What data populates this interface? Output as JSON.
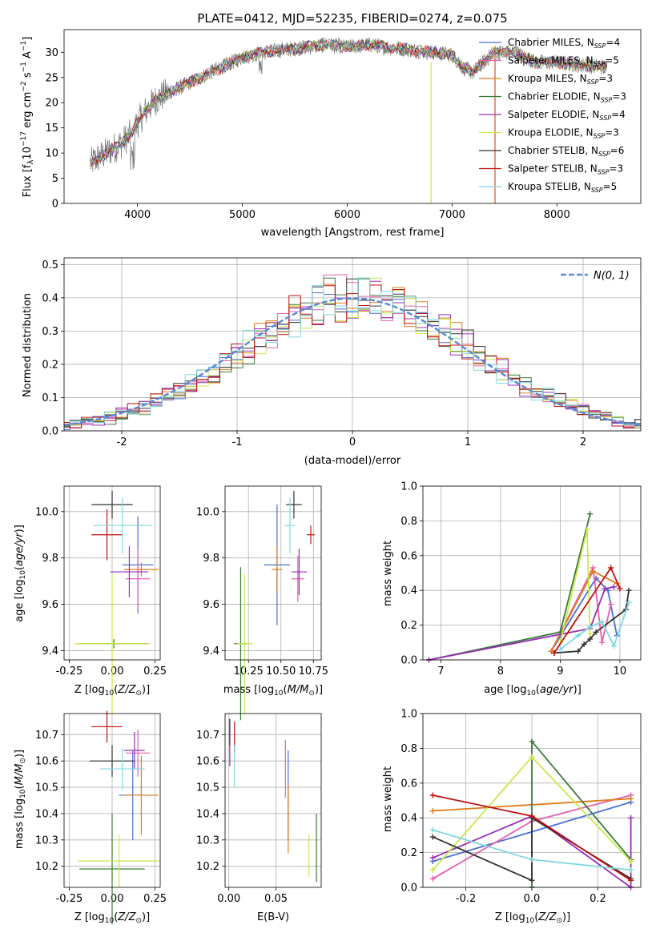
{
  "chart_data": [
    {
      "id": "spectrum",
      "type": "line",
      "title": "PLATE=0412, MJD=52235, FIBERID=0274, z=0.075",
      "xlabel": "wavelength [Angstrom, rest frame]",
      "ylabel": "Flux [f_λ10^-17 erg cm^-2 s^-1 A^-1]",
      "xlim": [
        3300,
        8800
      ],
      "ylim": [
        0,
        34.5
      ],
      "xticks": [
        4000,
        5000,
        6000,
        7000,
        8000
      ],
      "yticks": [
        0,
        5,
        10,
        15,
        20,
        25,
        30
      ],
      "series": [
        {
          "name": "Chabrier MILES, N_SSP=4",
          "color": "#4a6fd6"
        },
        {
          "name": "Salpeter MILES, N_SSP=5",
          "color": "#e45fb0"
        },
        {
          "name": "Kroupa MILES, N_SSP=3",
          "color": "#e07b1a"
        },
        {
          "name": "Chabrier ELODIE, N_SSP=3",
          "color": "#3a7a3a"
        },
        {
          "name": "Salpeter ELODIE, N_SSP=4",
          "color": "#9a2db8"
        },
        {
          "name": "Kroupa ELODIE, N_SSP=3",
          "color": "#c8e84a"
        },
        {
          "name": "Chabrier STELIB, N_SSP=6",
          "color": "#333333"
        },
        {
          "name": "Salpeter STELIB, N_SSP=3",
          "color": "#c01010"
        },
        {
          "name": "Kroupa STELIB, N_SSP=5",
          "color": "#7fd8de"
        }
      ],
      "continuum": {
        "x": [
          3550,
          3700,
          3850,
          3950,
          4000,
          4100,
          4200,
          4300,
          4500,
          4700,
          4900,
          5000,
          5200,
          5400,
          5600,
          5800,
          6000,
          6200,
          6400,
          6600,
          6800,
          7000,
          7100,
          7200,
          7400,
          7600,
          7800,
          8000,
          8200,
          8500
        ],
        "y": [
          8,
          10,
          12,
          14,
          16,
          19,
          21,
          22,
          24,
          26,
          28,
          29,
          30,
          30.5,
          31,
          31.5,
          31,
          31.5,
          31,
          30.5,
          30,
          29.5,
          27,
          26,
          30,
          30,
          28,
          28,
          27.5,
          27
        ]
      }
    },
    {
      "id": "residuals",
      "type": "area",
      "xlabel": "(data-model)/error",
      "ylabel": "Normed distribution",
      "xlim": [
        -2.5,
        2.5
      ],
      "ylim": [
        0,
        0.52
      ],
      "xticks": [
        -2,
        -1,
        0,
        1,
        2
      ],
      "yticks": [
        0.0,
        0.1,
        0.2,
        0.3,
        0.4,
        0.5
      ],
      "legend": "N(0, 1)",
      "gaussian_color": "#5b8bd6"
    },
    {
      "id": "age_vs_Z",
      "type": "scatter",
      "xlabel": "Z [log10(Z/Z⊙)]",
      "ylabel": "age  [log10(age/yr)]",
      "xlim": [
        -0.28,
        0.28
      ],
      "ylim": [
        9.36,
        10.11
      ],
      "xticks": [
        -0.25,
        0.0,
        0.25
      ],
      "yticks": [
        9.4,
        9.6,
        9.8,
        10.0
      ],
      "points": [
        {
          "color": "#4a6fd6",
          "x": 0.15,
          "y": 9.77,
          "ex": 0.09,
          "ey": 0.21
        },
        {
          "color": "#e45fb0",
          "x": 0.15,
          "y": 9.71,
          "ex": 0.07,
          "ey": 0.13
        },
        {
          "color": "#e07b1a",
          "x": 0.17,
          "y": 9.75,
          "ex": 0.1,
          "ey": 0.03
        },
        {
          "color": "#3a7a3a",
          "x": 0.01,
          "y": 9.43,
          "ex": 0.2,
          "ey": 0.02
        },
        {
          "color": "#9a2db8",
          "x": 0.1,
          "y": 9.74,
          "ex": 0.11,
          "ey": 0.11
        },
        {
          "color": "#c8e84a",
          "x": 0.0,
          "y": 9.43,
          "ex": 0.22,
          "ey": 0.3
        },
        {
          "color": "#333333",
          "x": 0.0,
          "y": 10.03,
          "ex": 0.12,
          "ey": 0.06
        },
        {
          "color": "#c01010",
          "x": -0.03,
          "y": 9.9,
          "ex": 0.09,
          "ey": 0.11
        },
        {
          "color": "#7fd8de",
          "x": 0.06,
          "y": 9.94,
          "ex": 0.17,
          "ey": 0.12
        }
      ]
    },
    {
      "id": "age_vs_mass",
      "type": "scatter",
      "xlabel": "mass [log10(M/M⊙)]",
      "ylabel": "",
      "xlim": [
        10.07,
        10.81
      ],
      "ylim": [
        9.36,
        10.11
      ],
      "xticks": [
        10.25,
        10.5,
        10.75
      ],
      "yticks": [
        9.4,
        9.6,
        9.8,
        10.0
      ],
      "points": [
        {
          "color": "#4a6fd6",
          "x": 10.47,
          "y": 9.77,
          "ex": 0.1,
          "ey": 0.26
        },
        {
          "color": "#e45fb0",
          "x": 10.63,
          "y": 9.71,
          "ex": 0.05,
          "ey": 0.1
        },
        {
          "color": "#e07b1a",
          "x": 10.47,
          "y": 9.75,
          "ex": 0.04,
          "ey": 0.1
        },
        {
          "color": "#3a7a3a",
          "x": 10.19,
          "y": 9.43,
          "ex": 0.05,
          "ey": 0.33
        },
        {
          "color": "#9a2db8",
          "x": 10.64,
          "y": 9.74,
          "ex": 0.06,
          "ey": 0.1
        },
        {
          "color": "#c8e84a",
          "x": 10.22,
          "y": 9.43,
          "ex": 0.06,
          "ey": 0.3
        },
        {
          "color": "#333333",
          "x": 10.6,
          "y": 10.03,
          "ex": 0.06,
          "ey": 0.06
        },
        {
          "color": "#c01010",
          "x": 10.73,
          "y": 9.9,
          "ex": 0.03,
          "ey": 0.04
        },
        {
          "color": "#7fd8de",
          "x": 10.57,
          "y": 9.94,
          "ex": 0.04,
          "ey": 0.12
        }
      ]
    },
    {
      "id": "weight_vs_age",
      "type": "line",
      "xlabel": "age  [log10(age/yr)]",
      "ylabel": "mass weight",
      "xlim": [
        6.7,
        10.35
      ],
      "ylim": [
        0.0,
        1.0
      ],
      "xticks": [
        7,
        8,
        9,
        10
      ],
      "yticks": [
        0.0,
        0.2,
        0.4,
        0.6,
        0.8,
        1.0
      ],
      "series": [
        {
          "color": "#4a6fd6",
          "x": [
            8.85,
            9.6,
            9.8,
            9.95
          ],
          "y": [
            0.05,
            0.47,
            0.4,
            0.14
          ]
        },
        {
          "color": "#e45fb0",
          "x": [
            8.85,
            9.55,
            9.7,
            9.85
          ],
          "y": [
            0.05,
            0.53,
            0.1,
            0.32
          ]
        },
        {
          "color": "#e07b1a",
          "x": [
            8.85,
            9.55,
            9.95
          ],
          "y": [
            0.05,
            0.51,
            0.44
          ]
        },
        {
          "color": "#3a7a3a",
          "x": [
            6.8,
            9.0,
            9.5
          ],
          "y": [
            0.0,
            0.16,
            0.84
          ]
        },
        {
          "color": "#9a2db8",
          "x": [
            6.8,
            9.5,
            9.75,
            9.9
          ],
          "y": [
            0.0,
            0.18,
            0.41,
            0.42
          ]
        },
        {
          "color": "#c8e84a",
          "x": [
            9.0,
            9.45,
            9.5
          ],
          "y": [
            0.1,
            0.75,
            0.15
          ]
        },
        {
          "color": "#333333",
          "x": [
            8.9,
            9.3,
            9.4,
            9.5,
            9.6,
            10.1,
            10.15
          ],
          "y": [
            0.04,
            0.05,
            0.09,
            0.12,
            0.16,
            0.29,
            0.4
          ]
        },
        {
          "color": "#c01010",
          "x": [
            8.9,
            9.85,
            10.0
          ],
          "y": [
            0.04,
            0.53,
            0.41
          ]
        },
        {
          "color": "#7fd8de",
          "x": [
            9.0,
            9.3,
            9.5,
            9.7,
            9.9,
            10.15
          ],
          "y": [
            0.06,
            0.14,
            0.19,
            0.22,
            0.08,
            0.33
          ]
        }
      ]
    },
    {
      "id": "mass_vs_Z",
      "type": "scatter",
      "xlabel": "Z [log10(Z/Z⊙)]",
      "ylabel": "mass [log10(M/M⊙)]",
      "xlim": [
        -0.28,
        0.28
      ],
      "ylim": [
        10.12,
        10.78
      ],
      "xticks": [
        -0.25,
        0.0,
        0.25
      ],
      "yticks": [
        10.2,
        10.3,
        10.4,
        10.5,
        10.6,
        10.7
      ],
      "points": [
        {
          "color": "#4a6fd6",
          "x": 0.12,
          "y": 10.47,
          "ex": 0.08,
          "ey": 0.17
        },
        {
          "color": "#e45fb0",
          "x": 0.15,
          "y": 10.63,
          "ex": 0.07,
          "ey": 0.09
        },
        {
          "color": "#e07b1a",
          "x": 0.17,
          "y": 10.47,
          "ex": 0.1,
          "ey": 0.15
        },
        {
          "color": "#3a7a3a",
          "x": 0.0,
          "y": 10.19,
          "ex": 0.19,
          "ey": 0.21
        },
        {
          "color": "#9a2db8",
          "x": 0.13,
          "y": 10.64,
          "ex": 0.06,
          "ey": 0.07
        },
        {
          "color": "#c8e84a",
          "x": 0.04,
          "y": 10.22,
          "ex": 0.24,
          "ey": 0.1
        },
        {
          "color": "#333333",
          "x": 0.0,
          "y": 10.6,
          "ex": 0.13,
          "ey": 0.06
        },
        {
          "color": "#c01010",
          "x": -0.03,
          "y": 10.73,
          "ex": 0.09,
          "ey": 0.06
        },
        {
          "color": "#7fd8de",
          "x": 0.06,
          "y": 10.57,
          "ex": 0.13,
          "ey": 0.08
        }
      ]
    },
    {
      "id": "mass_vs_EBV",
      "type": "scatter",
      "xlabel": "E(B-V)",
      "ylabel": "",
      "xlim": [
        -0.004,
        0.098
      ],
      "ylim": [
        10.12,
        10.78
      ],
      "xticks": [
        0.0,
        0.05
      ],
      "yticks": [
        10.2,
        10.3,
        10.4,
        10.5,
        10.6,
        10.7
      ],
      "points": [
        {
          "color": "#4a6fd6",
          "x": 0.063,
          "y": 10.47,
          "ey": 0.17
        },
        {
          "color": "#e45fb0",
          "x": 0.06,
          "y": 10.57,
          "ey": 0.11
        },
        {
          "color": "#e07b1a",
          "x": 0.063,
          "y": 10.38,
          "ey": 0.13
        },
        {
          "color": "#3a7a3a",
          "x": 0.093,
          "y": 10.27,
          "ey": 0.13
        },
        {
          "color": "#9a2db8",
          "x": 0.001,
          "y": 10.67,
          "ey": 0.09
        },
        {
          "color": "#c8e84a",
          "x": 0.085,
          "y": 10.24,
          "ey": 0.08
        },
        {
          "color": "#333333",
          "x": 0.001,
          "y": 10.71,
          "ey": 0.05
        },
        {
          "color": "#c01010",
          "x": 0.006,
          "y": 10.69,
          "ey": 0.06
        },
        {
          "color": "#7fd8de",
          "x": 0.006,
          "y": 10.58,
          "ey": 0.08
        }
      ]
    },
    {
      "id": "weight_vs_Z",
      "type": "line",
      "xlabel": "Z [log10(Z/Z⊙)]",
      "ylabel": "mass weight",
      "xlim": [
        -0.33,
        0.33
      ],
      "ylim": [
        0.0,
        1.0
      ],
      "xticks": [
        -0.2,
        0.0,
        0.2
      ],
      "yticks": [
        0.0,
        0.2,
        0.4,
        0.6,
        0.8,
        1.0
      ],
      "series": [
        {
          "color": "#4a6fd6",
          "x": [
            -0.3,
            0.3
          ],
          "y": [
            0.15,
            0.49
          ]
        },
        {
          "color": "#e45fb0",
          "x": [
            -0.3,
            0.0,
            0.3
          ],
          "y": [
            0.05,
            0.38,
            0.53
          ]
        },
        {
          "color": "#e07b1a",
          "x": [
            -0.3,
            0.3
          ],
          "y": [
            0.44,
            0.51
          ]
        },
        {
          "color": "#3a7a3a",
          "x": [
            0.0,
            0.0,
            0.3
          ],
          "y": [
            0.0,
            0.84,
            0.16
          ]
        },
        {
          "color": "#9a2db8",
          "x": [
            -0.3,
            0.0,
            0.3,
            0.3
          ],
          "y": [
            0.17,
            0.41,
            0.0,
            0.4
          ]
        },
        {
          "color": "#c8e84a",
          "x": [
            -0.3,
            0.0,
            0.3
          ],
          "y": [
            0.1,
            0.75,
            0.15
          ]
        },
        {
          "color": "#333333",
          "x": [
            -0.3,
            0.0,
            0.0,
            0.3
          ],
          "y": [
            0.29,
            0.04,
            0.4,
            0.05
          ]
        },
        {
          "color": "#c01010",
          "x": [
            -0.3,
            0.0,
            0.3
          ],
          "y": [
            0.53,
            0.41,
            0.04
          ]
        },
        {
          "color": "#7fd8de",
          "x": [
            -0.3,
            0.0,
            0.3
          ],
          "y": [
            0.33,
            0.16,
            0.1
          ]
        }
      ]
    }
  ]
}
